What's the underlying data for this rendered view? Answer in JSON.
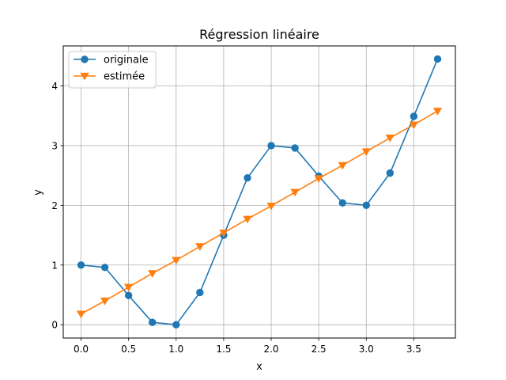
{
  "chart_data": {
    "type": "line",
    "title": "Régression linéaire",
    "xlabel": "x",
    "ylabel": "y",
    "xlim": [
      -0.1875,
      3.9375
    ],
    "ylim": [
      -0.223,
      4.67
    ],
    "xticks": [
      "0.0",
      "0.5",
      "1.0",
      "1.5",
      "2.0",
      "2.5",
      "3.0",
      "3.5"
    ],
    "xtick_values": [
      0,
      0.5,
      1,
      1.5,
      2,
      2.5,
      3,
      3.5
    ],
    "yticks": [
      "0",
      "1",
      "2",
      "3",
      "4"
    ],
    "ytick_values": [
      0,
      1,
      2,
      3,
      4
    ],
    "grid": true,
    "legend_position": "top-left",
    "x": [
      0,
      0.25,
      0.5,
      0.75,
      1,
      1.25,
      1.5,
      1.75,
      2,
      2.25,
      2.5,
      2.75,
      3,
      3.25,
      3.5,
      3.75
    ],
    "series": [
      {
        "name": "originale",
        "color": "#1f77b4",
        "marker": "circle",
        "values": [
          1.0,
          0.96,
          0.49,
          0.04,
          0.0,
          0.54,
          1.5,
          2.46,
          3.0,
          2.96,
          2.49,
          2.04,
          2.0,
          2.54,
          3.49,
          4.45
        ]
      },
      {
        "name": "estimée",
        "color": "#ff7f0e",
        "marker": "triangle-down",
        "values": [
          0.18,
          0.4,
          0.63,
          0.86,
          1.08,
          1.31,
          1.54,
          1.77,
          1.99,
          2.22,
          2.45,
          2.67,
          2.9,
          3.13,
          3.35,
          3.58
        ]
      }
    ]
  }
}
